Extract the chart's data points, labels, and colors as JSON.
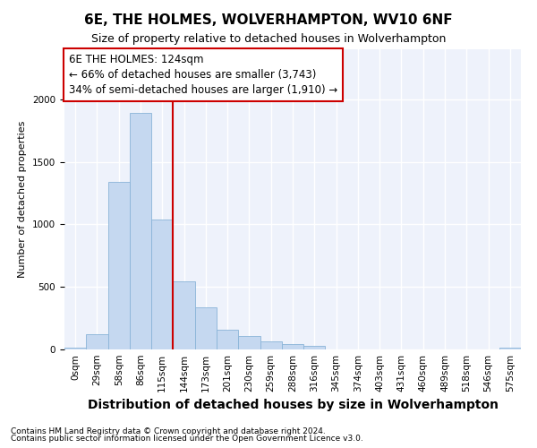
{
  "title": "6E, THE HOLMES, WOLVERHAMPTON, WV10 6NF",
  "subtitle": "Size of property relative to detached houses in Wolverhampton",
  "xlabel": "Distribution of detached houses by size in Wolverhampton",
  "ylabel": "Number of detached properties",
  "bar_color": "#c5d8f0",
  "bar_edge_color": "#8ab4d8",
  "background_color": "#eef2fb",
  "grid_color": "#ffffff",
  "annotation_box_color": "#cc0000",
  "vline_color": "#cc0000",
  "categories": [
    "0sqm",
    "29sqm",
    "58sqm",
    "86sqm",
    "115sqm",
    "144sqm",
    "173sqm",
    "201sqm",
    "230sqm",
    "259sqm",
    "288sqm",
    "316sqm",
    "345sqm",
    "374sqm",
    "403sqm",
    "431sqm",
    "460sqm",
    "489sqm",
    "518sqm",
    "546sqm",
    "575sqm"
  ],
  "values": [
    15,
    120,
    1340,
    1890,
    1040,
    545,
    335,
    160,
    110,
    62,
    40,
    30,
    0,
    0,
    0,
    0,
    0,
    0,
    0,
    0,
    15
  ],
  "vline_position": 4.5,
  "annotation_line1": "6E THE HOLMES: 124sqm",
  "annotation_line2": "← 66% of detached houses are smaller (3,743)",
  "annotation_line3": "34% of semi-detached houses are larger (1,910) →",
  "footer1": "Contains HM Land Registry data © Crown copyright and database right 2024.",
  "footer2": "Contains public sector information licensed under the Open Government Licence v3.0.",
  "ylim": [
    0,
    2400
  ],
  "title_fontsize": 11,
  "subtitle_fontsize": 9,
  "ylabel_fontsize": 8,
  "xlabel_fontsize": 10,
  "tick_fontsize": 7.5,
  "annotation_fontsize": 8.5,
  "footer_fontsize": 6.5
}
